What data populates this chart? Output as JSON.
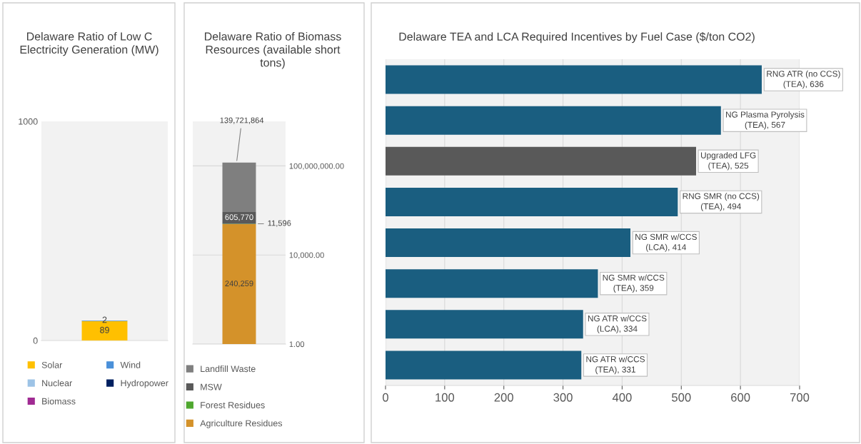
{
  "chart_data": [
    {
      "type": "bar",
      "stacked": true,
      "title": "Delaware Ratio of Low C Electricity Generation (MW)",
      "categories": [
        null
      ],
      "ylim": [
        0,
        1000
      ],
      "yticks": [
        0,
        1000
      ],
      "grid": false,
      "legend": "bottom",
      "series": [
        {
          "name": "Solar",
          "color": "#ffc000",
          "values": [
            89
          ],
          "value_labels": [
            "89"
          ]
        },
        {
          "name": "Wind",
          "color": "#4a90d9",
          "values": [
            2
          ],
          "value_labels": [
            "2"
          ]
        },
        {
          "name": "Nuclear",
          "color": "#9dc3e6",
          "values": [
            0
          ],
          "value_labels": [
            null
          ]
        },
        {
          "name": "Hydropower",
          "color": "#002060",
          "values": [
            0
          ],
          "value_labels": [
            null
          ]
        },
        {
          "name": "Biomass",
          "color": "#a02b93",
          "values": [
            0
          ],
          "value_labels": [
            null
          ]
        }
      ]
    },
    {
      "type": "bar",
      "stacked": true,
      "log": true,
      "title": "Delaware Ratio of Biomass Resources (available short tons)",
      "categories": [
        null
      ],
      "ylim": [
        1,
        10000000000
      ],
      "yticks": [
        {
          "value": 1,
          "label": "1.00"
        },
        {
          "value": 10000,
          "label": "10,000.00"
        },
        {
          "value": 100000000,
          "label": "100,000,000.00"
        }
      ],
      "grid": "y",
      "legend": "bottom",
      "series": [
        {
          "name": "Agriculture Residues",
          "color": "#d4922a",
          "values": [
            240259
          ],
          "value_labels": [
            "240,259"
          ]
        },
        {
          "name": "Forest Residues",
          "color": "#4ea72e",
          "values": [
            11596
          ],
          "value_labels": [
            "11,596"
          ]
        },
        {
          "name": "MSW",
          "color": "#595959",
          "values": [
            605770
          ],
          "value_labels": [
            "605,770"
          ]
        },
        {
          "name": "Landfill Waste",
          "color": "#7f7f7f",
          "values": [
            139721864
          ],
          "value_labels": [
            "139,721,864"
          ]
        }
      ]
    },
    {
      "type": "bar",
      "orientation": "horizontal",
      "title": "Delaware TEA and LCA Required Incentives by Fuel Case ($/ton CO2)",
      "categories": [
        null,
        null,
        null,
        null,
        null,
        null,
        null,
        null
      ],
      "value_labels": [
        "RNG ATR (no CCS) (TEA), 636",
        "NG Plasma Pyrolysis (TEA), 567",
        "Upgraded LFG (TEA), 525",
        "RNG SMR (no CCS) (TEA), 494",
        "NG SMR w/CCS (LCA), 414",
        "NG SMR w/CCS (TEA), 359",
        "NG ATR w/CCS (LCA), 334",
        "NG ATR w/CCS (TEA), 331"
      ],
      "values": [
        636,
        567,
        525,
        494,
        414,
        359,
        334,
        331
      ],
      "colors": [
        "#1a5e80",
        "#1a5e80",
        "#595959",
        "#1a5e80",
        "#1a5e80",
        "#1a5e80",
        "#1a5e80",
        "#1a5e80"
      ],
      "xlim": [
        0,
        700
      ],
      "xticks": [
        0,
        100,
        200,
        300,
        400,
        500,
        600,
        700
      ],
      "grid": "x",
      "legend": false,
      "tick_labels": "x"
    }
  ]
}
